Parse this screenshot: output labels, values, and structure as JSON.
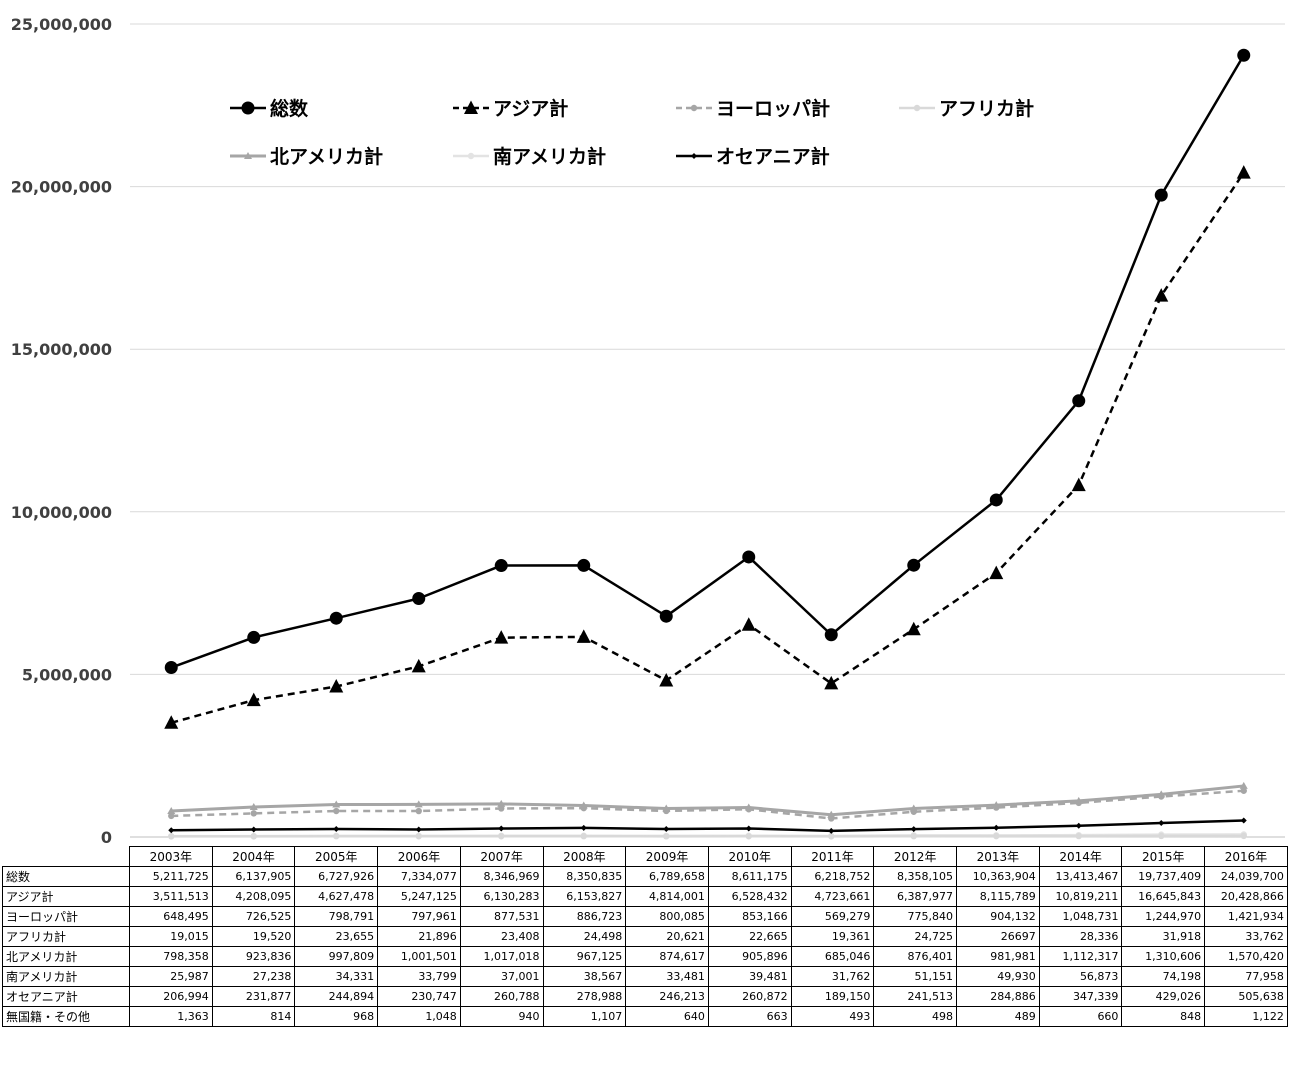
{
  "chart_data": {
    "type": "line",
    "x": [
      "2003年",
      "2004年",
      "2005年",
      "2006年",
      "2007年",
      "2008年",
      "2009年",
      "2010年",
      "2011年",
      "2012年",
      "2013年",
      "2014年",
      "2015年",
      "2016年"
    ],
    "ylim": [
      0,
      25000000
    ],
    "yticks": [
      "0",
      "5,000,000",
      "10,000,000",
      "15,000,000",
      "20,000,000",
      "25,000,000"
    ],
    "grid": true,
    "legend_position": "top-left, inside plot",
    "series": [
      {
        "name": "総数",
        "color": "#000000",
        "dash": "solid",
        "marker": "circle",
        "width": 2.5,
        "values": [
          5211725,
          6137905,
          6727926,
          7334077,
          8346969,
          8350835,
          6789658,
          8611175,
          6218752,
          8358105,
          10363904,
          13413467,
          19737409,
          24039700
        ],
        "labels": [
          "5,211,725",
          "6,137,905",
          "6,727,926",
          "7,334,077",
          "8,346,969",
          "8,350,835",
          "6,789,658",
          "8,611,175",
          "6,218,752",
          "8,358,105",
          "10,363,904",
          "13,413,467",
          "19,737,409",
          "24,039,700"
        ]
      },
      {
        "name": "アジア計",
        "color": "#000000",
        "dash": "dashed",
        "marker": "triangle",
        "width": 2.5,
        "values": [
          3511513,
          4208095,
          4627478,
          5247125,
          6130283,
          6153827,
          4814001,
          6528432,
          4723661,
          6387977,
          8115789,
          10819211,
          16645843,
          20428866
        ],
        "labels": [
          "3,511,513",
          "4,208,095",
          "4,627,478",
          "5,247,125",
          "6,130,283",
          "6,153,827",
          "4,814,001",
          "6,528,432",
          "4,723,661",
          "6,387,977",
          "8,115,789",
          "10,819,211",
          "16,645,843",
          "20,428,866"
        ]
      },
      {
        "name": "ヨーロッパ計",
        "color": "#a6a6a6",
        "dash": "dashed",
        "marker": "circle-small",
        "width": 2.5,
        "values": [
          648495,
          726525,
          798791,
          797961,
          877531,
          886723,
          800085,
          853166,
          569279,
          775840,
          904132,
          1048731,
          1244970,
          1421934
        ],
        "labels": [
          "648,495",
          "726,525",
          "798,791",
          "797,961",
          "877,531",
          "886,723",
          "800,085",
          "853,166",
          "569,279",
          "775,840",
          "904,132",
          "1,048,731",
          "1,244,970",
          "1,421,934"
        ]
      },
      {
        "name": "アフリカ計",
        "color": "#d9d9d9",
        "dash": "solid",
        "marker": "circle-small",
        "width": 2.5,
        "values": [
          19015,
          19520,
          23655,
          21896,
          23408,
          24498,
          20621,
          22665,
          19361,
          24725,
          26697,
          28336,
          31918,
          33762
        ],
        "labels": [
          "19,015",
          "19,520",
          "23,655",
          "21,896",
          "23,408",
          "24,498",
          "20,621",
          "22,665",
          "19,361",
          "24,725",
          "26697",
          "28,336",
          "31,918",
          "33,762"
        ]
      },
      {
        "name": "北アメリカ計",
        "color": "#a6a6a6",
        "dash": "solid",
        "marker": "triangle-small",
        "width": 3,
        "values": [
          798358,
          923836,
          997809,
          1001501,
          1017018,
          967125,
          874617,
          905896,
          685046,
          876401,
          981981,
          1112317,
          1310606,
          1570420
        ],
        "labels": [
          "798,358",
          "923,836",
          "997,809",
          "1,001,501",
          "1,017,018",
          "967,125",
          "874,617",
          "905,896",
          "685,046",
          "876,401",
          "981,981",
          "1,112,317",
          "1,310,606",
          "1,570,420"
        ]
      },
      {
        "name": "南アメリカ計",
        "color": "#e3e3e3",
        "dash": "solid",
        "marker": "circle-small",
        "width": 2.5,
        "values": [
          25987,
          27238,
          34331,
          33799,
          37001,
          38567,
          33481,
          39481,
          31762,
          51151,
          49930,
          56873,
          74198,
          77958
        ],
        "labels": [
          "25,987",
          "27,238",
          "34,331",
          "33,799",
          "37,001",
          "38,567",
          "33,481",
          "39,481",
          "31,762",
          "51,151",
          "49,930",
          "56,873",
          "74,198",
          "77,958"
        ]
      },
      {
        "name": "オセアニア計",
        "color": "#000000",
        "dash": "solid",
        "marker": "diamond-small",
        "width": 2.5,
        "values": [
          206994,
          231877,
          244894,
          230747,
          260788,
          278988,
          246213,
          260872,
          189150,
          241513,
          284886,
          347339,
          429026,
          505638
        ],
        "labels": [
          "206,994",
          "231,877",
          "244,894",
          "230,747",
          "260,788",
          "278,988",
          "246,213",
          "260,872",
          "189,150",
          "241,513",
          "284,886",
          "347,339",
          "429,026",
          "505,638"
        ]
      }
    ],
    "table_only_rows": [
      {
        "name": "無国籍・その他",
        "labels": [
          "1,363",
          "814",
          "968",
          "1,048",
          "940",
          "1,107",
          "640",
          "663",
          "493",
          "498",
          "489",
          "660",
          "848",
          "1,122"
        ]
      }
    ]
  }
}
